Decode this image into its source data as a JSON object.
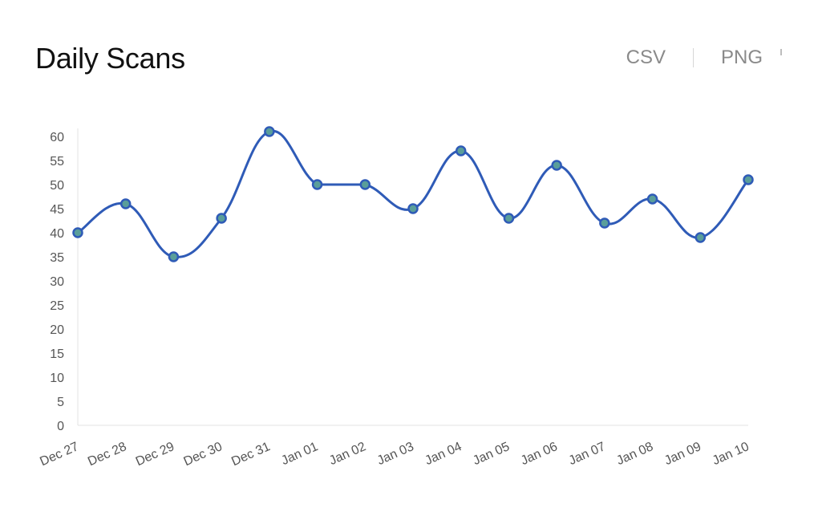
{
  "header": {
    "title": "Daily Scans",
    "export_csv": "CSV",
    "export_png": "PNG"
  },
  "chart_data": {
    "type": "line",
    "title": "Daily Scans",
    "xlabel": "",
    "ylabel": "",
    "categories": [
      "Dec 27",
      "Dec 28",
      "Dec 29",
      "Dec 30",
      "Dec 31",
      "Jan 01",
      "Jan 02",
      "Jan 03",
      "Jan 04",
      "Jan 05",
      "Jan 06",
      "Jan 07",
      "Jan 08",
      "Jan 09",
      "Jan 10"
    ],
    "series": [
      {
        "values": [
          40,
          46,
          35,
          43,
          61,
          50,
          50,
          45,
          57,
          43,
          54,
          42,
          47,
          39,
          51
        ]
      }
    ],
    "ylim": [
      0,
      60
    ],
    "yticks": [
      0,
      5,
      10,
      15,
      20,
      25,
      30,
      35,
      40,
      45,
      50,
      55,
      60
    ],
    "grid": false,
    "line_color": "#2f5bb7",
    "marker_fill": "#5a9e9a",
    "smooth": true
  }
}
